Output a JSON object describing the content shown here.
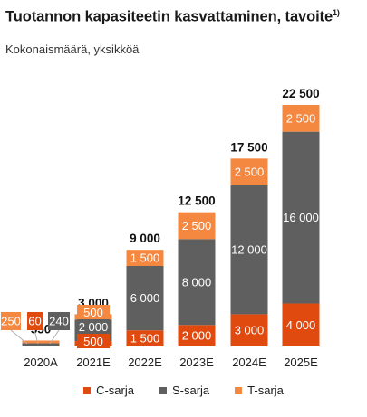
{
  "title": "Tuotannon kapasiteetin kasvattaminen, tavoite",
  "title_footnote": "1)",
  "subtitle": "Kokonaismäärä, yksikköä",
  "colors": {
    "c_sarja": "#e04a0f",
    "s_sarja": "#5f5f5f",
    "t_sarja": "#f58840"
  },
  "chart_data": {
    "type": "bar",
    "stacked": true,
    "categories": [
      "2020A",
      "2021E",
      "2022E",
      "2023E",
      "2024E",
      "2025E"
    ],
    "series": [
      {
        "name": "C-sarja",
        "values": [
          60,
          500,
          1500,
          2000,
          3000,
          4000
        ],
        "labels": [
          "60",
          "500",
          "1 500",
          "2 000",
          "3 000",
          "4 000"
        ]
      },
      {
        "name": "S-sarja",
        "values": [
          240,
          2000,
          6000,
          8000,
          12000,
          16000
        ],
        "labels": [
          "240",
          "2 000",
          "6 000",
          "8 000",
          "12 000",
          "16 000"
        ]
      },
      {
        "name": "T-sarja",
        "values": [
          250,
          500,
          1500,
          2500,
          2500,
          2500
        ],
        "labels": [
          "250",
          "500",
          "1 500",
          "2 500",
          "2 500",
          "2 500"
        ]
      }
    ],
    "totals": [
      550,
      3000,
      9000,
      12500,
      17500,
      22500
    ],
    "total_labels": [
      "550",
      "3 000",
      "9 000",
      "12 500",
      "17 500",
      "22 500"
    ],
    "ylim": [
      0,
      22500
    ],
    "grid": false,
    "legend_position": "bottom"
  }
}
